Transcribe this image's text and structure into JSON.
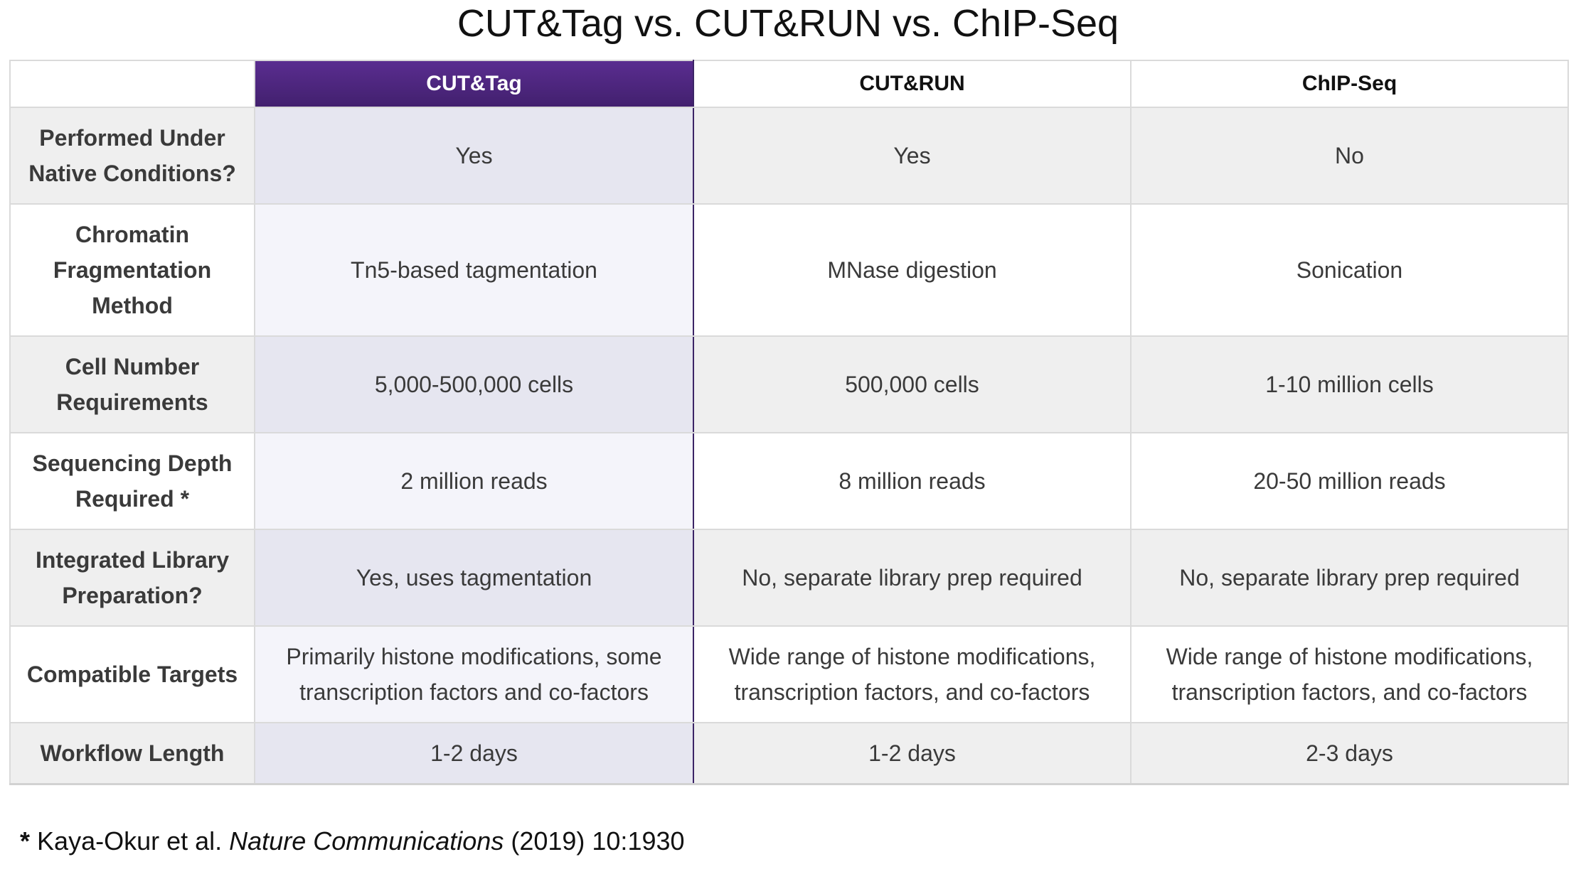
{
  "title": "CUT&Tag vs. CUT&RUN vs. ChIP-Seq",
  "columns": [
    "CUT&Tag",
    "CUT&RUN",
    "ChIP-Seq"
  ],
  "highlight_color": "#4b2580",
  "rows": [
    {
      "label": "Performed Under Native Conditions?",
      "values": [
        "Yes",
        "Yes",
        "No"
      ]
    },
    {
      "label": "Chromatin Fragmentation Method",
      "values": [
        "Tn5-based tagmentation",
        "MNase digestion",
        "Sonication"
      ]
    },
    {
      "label": "Cell Number Requirements",
      "values": [
        "5,000-500,000 cells",
        "500,000 cells",
        "1-10 million cells"
      ]
    },
    {
      "label": "Sequencing Depth Required *",
      "values": [
        "2 million reads",
        "8 million reads",
        "20-50 million reads"
      ]
    },
    {
      "label": "Integrated Library Preparation?",
      "values": [
        "Yes, uses tagmentation",
        "No, separate library prep required",
        "No, separate library prep required"
      ]
    },
    {
      "label": "Compatible Targets",
      "values": [
        "Primarily histone modifications, some transcription factors and co-factors",
        "Wide range of histone modifications, transcription factors, and co-factors",
        "Wide range of histone modifications, transcription factors, and co-factors"
      ]
    },
    {
      "label": "Workflow Length",
      "values": [
        "1-2 days",
        "1-2 days",
        "2-3 days"
      ]
    }
  ],
  "footnote": {
    "marker": "*",
    "authors": "Kaya-Okur et al.",
    "journal": "Nature Communications",
    "citation": "(2019) 10:1930"
  }
}
